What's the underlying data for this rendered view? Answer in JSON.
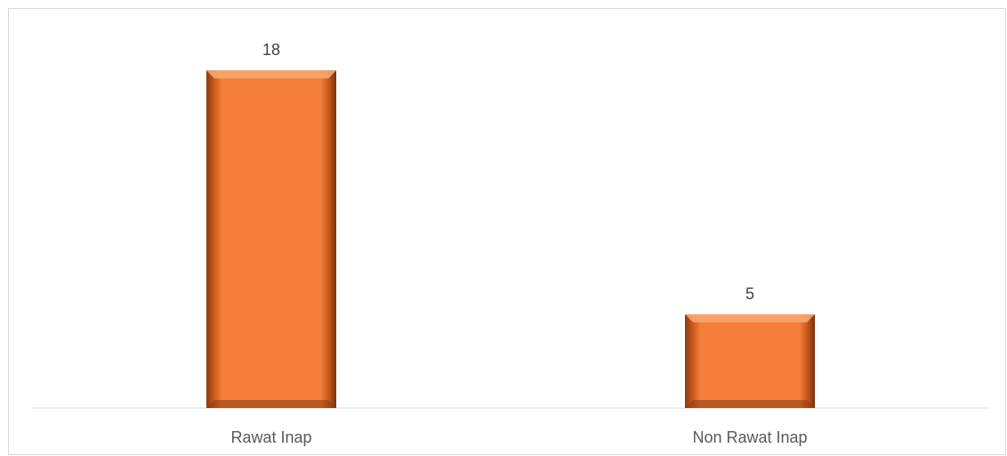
{
  "chart_data": {
    "type": "bar",
    "categories": [
      "Rawat Inap",
      "Non Rawat Inap"
    ],
    "values": [
      18,
      5
    ],
    "ylim": [
      0,
      20
    ],
    "grid": false,
    "data_labels": true,
    "bar_color": "#F47F3B"
  }
}
